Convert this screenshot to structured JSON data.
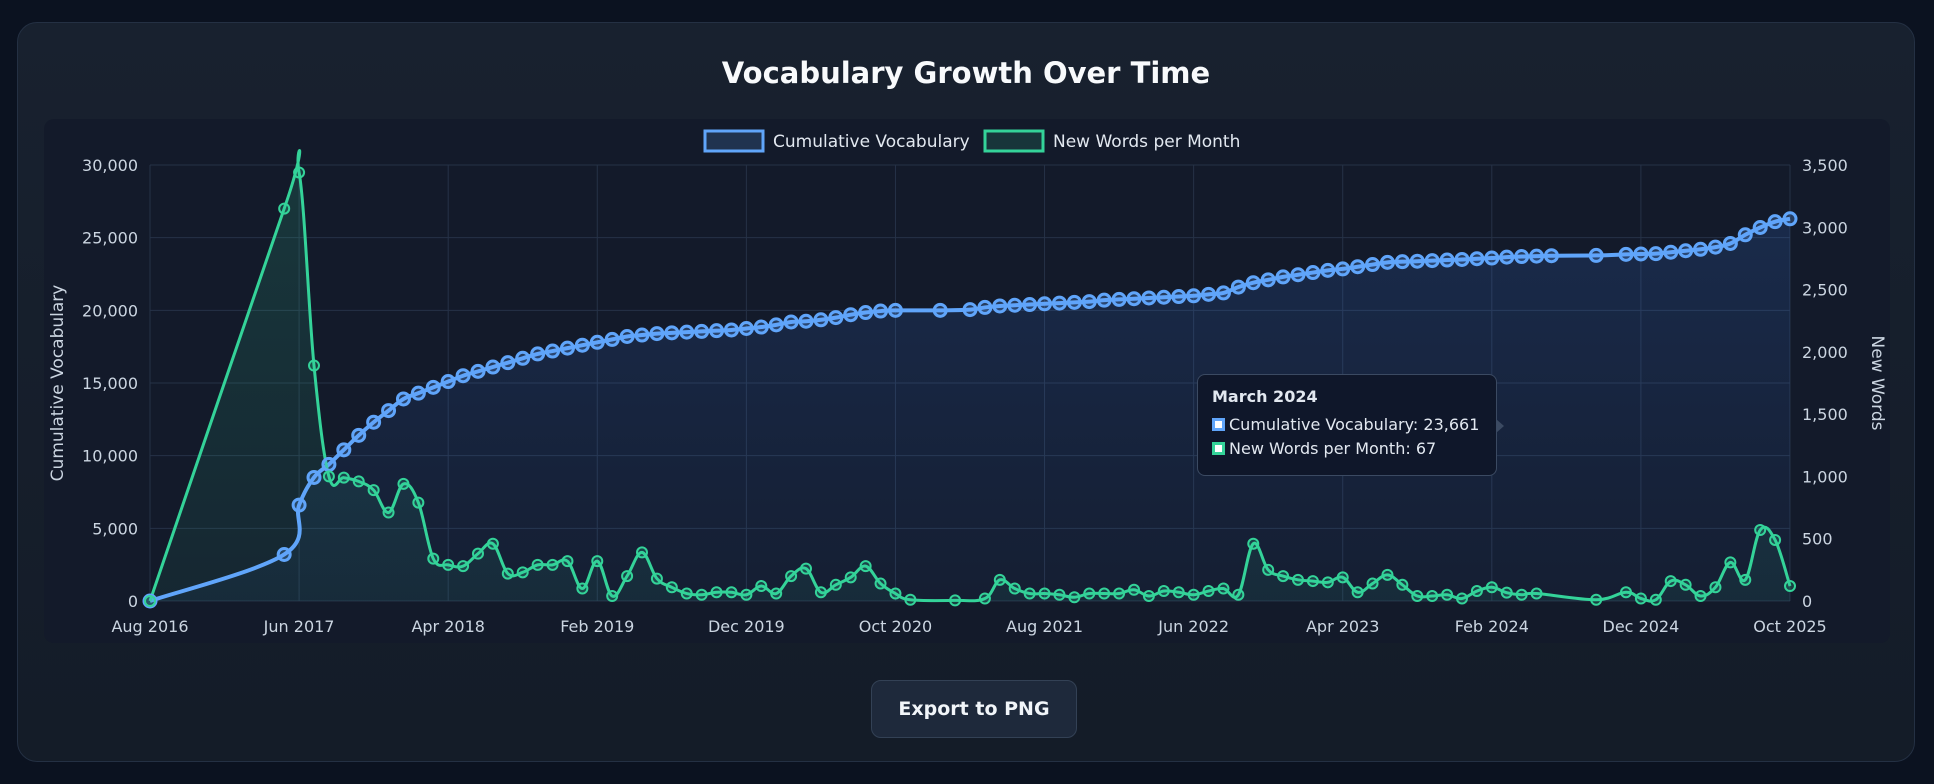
{
  "title": "Vocabulary Growth Over Time",
  "export_label": "Export to PNG",
  "tooltip": {
    "title": "March 2024",
    "rows": [
      {
        "label": "Cumulative Vocabulary: 23,661",
        "color": "#60a5fa"
      },
      {
        "label": "New Words per Month: 67",
        "color": "#34d399"
      }
    ]
  },
  "chart_data": {
    "type": "line",
    "title": "Vocabulary Growth Over Time",
    "legend_position": "top-center",
    "grid": true,
    "x_tick_labels": [
      "Aug 2016",
      "Jun 2017",
      "Apr 2018",
      "Feb 2019",
      "Dec 2019",
      "Oct 2020",
      "Aug 2021",
      "Jun 2022",
      "Apr 2023",
      "Feb 2024",
      "Dec 2024",
      "Oct 2025"
    ],
    "x_range": [
      "2016-08",
      "2025-10"
    ],
    "y_left": {
      "label": "Cumulative Vocabulary",
      "range": [
        0,
        30000
      ],
      "ticks": [
        "0",
        "5,000",
        "10,000",
        "15,000",
        "20,000",
        "25,000",
        "30,000"
      ]
    },
    "y_right": {
      "label": "New Words",
      "range": [
        0,
        3500
      ],
      "ticks": [
        "0",
        "500",
        "1,000",
        "1,500",
        "2,000",
        "2,500",
        "3,000",
        "3,500"
      ]
    },
    "series": [
      {
        "name": "Cumulative Vocabulary",
        "axis": "left",
        "color": "#60a5fa",
        "points": [
          [
            "2016-08",
            0
          ],
          [
            "2017-05",
            3200
          ],
          [
            "2017-06",
            6600
          ],
          [
            "2017-07",
            8500
          ],
          [
            "2017-08",
            9400
          ],
          [
            "2017-09",
            10400
          ],
          [
            "2017-10",
            11400
          ],
          [
            "2017-11",
            12300
          ],
          [
            "2017-12",
            13100
          ],
          [
            "2018-01",
            13900
          ],
          [
            "2018-02",
            14300
          ],
          [
            "2018-03",
            14700
          ],
          [
            "2018-04",
            15100
          ],
          [
            "2018-05",
            15500
          ],
          [
            "2018-06",
            15800
          ],
          [
            "2018-07",
            16100
          ],
          [
            "2018-08",
            16400
          ],
          [
            "2018-09",
            16700
          ],
          [
            "2018-10",
            17000
          ],
          [
            "2018-11",
            17200
          ],
          [
            "2018-12",
            17400
          ],
          [
            "2019-01",
            17600
          ],
          [
            "2019-02",
            17800
          ],
          [
            "2019-03",
            18000
          ],
          [
            "2019-04",
            18200
          ],
          [
            "2019-05",
            18300
          ],
          [
            "2019-06",
            18400
          ],
          [
            "2019-07",
            18450
          ],
          [
            "2019-08",
            18500
          ],
          [
            "2019-09",
            18550
          ],
          [
            "2019-10",
            18600
          ],
          [
            "2019-11",
            18650
          ],
          [
            "2019-12",
            18750
          ],
          [
            "2020-01",
            18850
          ],
          [
            "2020-02",
            19000
          ],
          [
            "2020-03",
            19200
          ],
          [
            "2020-04",
            19250
          ],
          [
            "2020-05",
            19350
          ],
          [
            "2020-06",
            19500
          ],
          [
            "2020-07",
            19700
          ],
          [
            "2020-08",
            19850
          ],
          [
            "2020-09",
            19950
          ],
          [
            "2020-10",
            20000
          ],
          [
            "2021-01",
            20000
          ],
          [
            "2021-03",
            20050
          ],
          [
            "2021-04",
            20200
          ],
          [
            "2021-05",
            20300
          ],
          [
            "2021-06",
            20350
          ],
          [
            "2021-07",
            20400
          ],
          [
            "2021-08",
            20450
          ],
          [
            "2021-09",
            20500
          ],
          [
            "2021-10",
            20550
          ],
          [
            "2021-11",
            20600
          ],
          [
            "2021-12",
            20700
          ],
          [
            "2022-01",
            20750
          ],
          [
            "2022-02",
            20800
          ],
          [
            "2022-03",
            20850
          ],
          [
            "2022-04",
            20900
          ],
          [
            "2022-05",
            20950
          ],
          [
            "2022-06",
            21000
          ],
          [
            "2022-07",
            21100
          ],
          [
            "2022-08",
            21200
          ],
          [
            "2022-09",
            21600
          ],
          [
            "2022-10",
            21900
          ],
          [
            "2022-11",
            22100
          ],
          [
            "2022-12",
            22300
          ],
          [
            "2023-01",
            22450
          ],
          [
            "2023-02",
            22600
          ],
          [
            "2023-03",
            22750
          ],
          [
            "2023-04",
            22850
          ],
          [
            "2023-05",
            23000
          ],
          [
            "2023-06",
            23150
          ],
          [
            "2023-07",
            23300
          ],
          [
            "2023-08",
            23350
          ],
          [
            "2023-09",
            23380
          ],
          [
            "2023-10",
            23420
          ],
          [
            "2023-11",
            23460
          ],
          [
            "2023-12",
            23500
          ],
          [
            "2024-01",
            23550
          ],
          [
            "2024-02",
            23600
          ],
          [
            "2024-03",
            23661
          ],
          [
            "2024-04",
            23700
          ],
          [
            "2024-05",
            23730
          ],
          [
            "2024-06",
            23760
          ],
          [
            "2024-09",
            23780
          ],
          [
            "2024-11",
            23850
          ],
          [
            "2024-12",
            23880
          ],
          [
            "2025-01",
            23900
          ],
          [
            "2025-02",
            24000
          ],
          [
            "2025-03",
            24100
          ],
          [
            "2025-04",
            24200
          ],
          [
            "2025-05",
            24350
          ],
          [
            "2025-06",
            24600
          ],
          [
            "2025-07",
            25200
          ],
          [
            "2025-08",
            25700
          ],
          [
            "2025-09",
            26100
          ],
          [
            "2025-10",
            26300
          ]
        ]
      },
      {
        "name": "New Words per Month",
        "axis": "right",
        "color": "#34d399",
        "points": [
          [
            "2016-08",
            0
          ],
          [
            "2017-05",
            3150
          ],
          [
            "2017-06",
            3440
          ],
          [
            "2017-07",
            1890
          ],
          [
            "2017-08",
            1000
          ],
          [
            "2017-09",
            990
          ],
          [
            "2017-10",
            960
          ],
          [
            "2017-11",
            890
          ],
          [
            "2017-12",
            710
          ],
          [
            "2018-01",
            940
          ],
          [
            "2018-02",
            790
          ],
          [
            "2018-03",
            340
          ],
          [
            "2018-04",
            290
          ],
          [
            "2018-05",
            280
          ],
          [
            "2018-06",
            380
          ],
          [
            "2018-07",
            460
          ],
          [
            "2018-08",
            220
          ],
          [
            "2018-09",
            230
          ],
          [
            "2018-10",
            290
          ],
          [
            "2018-11",
            290
          ],
          [
            "2018-12",
            320
          ],
          [
            "2019-01",
            100
          ],
          [
            "2019-02",
            320
          ],
          [
            "2019-03",
            40
          ],
          [
            "2019-04",
            200
          ],
          [
            "2019-05",
            390
          ],
          [
            "2019-06",
            180
          ],
          [
            "2019-07",
            110
          ],
          [
            "2019-08",
            60
          ],
          [
            "2019-09",
            50
          ],
          [
            "2019-10",
            70
          ],
          [
            "2019-11",
            70
          ],
          [
            "2019-12",
            50
          ],
          [
            "2020-01",
            120
          ],
          [
            "2020-02",
            60
          ],
          [
            "2020-03",
            200
          ],
          [
            "2020-04",
            260
          ],
          [
            "2020-05",
            70
          ],
          [
            "2020-06",
            130
          ],
          [
            "2020-07",
            190
          ],
          [
            "2020-08",
            280
          ],
          [
            "2020-09",
            140
          ],
          [
            "2020-10",
            60
          ],
          [
            "2020-11",
            10
          ],
          [
            "2021-02",
            5
          ],
          [
            "2021-04",
            20
          ],
          [
            "2021-05",
            170
          ],
          [
            "2021-06",
            100
          ],
          [
            "2021-07",
            60
          ],
          [
            "2021-08",
            60
          ],
          [
            "2021-09",
            50
          ],
          [
            "2021-10",
            30
          ],
          [
            "2021-11",
            60
          ],
          [
            "2021-12",
            60
          ],
          [
            "2022-01",
            60
          ],
          [
            "2022-02",
            90
          ],
          [
            "2022-03",
            40
          ],
          [
            "2022-04",
            80
          ],
          [
            "2022-05",
            70
          ],
          [
            "2022-06",
            50
          ],
          [
            "2022-07",
            80
          ],
          [
            "2022-08",
            100
          ],
          [
            "2022-09",
            50
          ],
          [
            "2022-10",
            460
          ],
          [
            "2022-11",
            250
          ],
          [
            "2022-12",
            200
          ],
          [
            "2023-01",
            170
          ],
          [
            "2023-02",
            160
          ],
          [
            "2023-03",
            150
          ],
          [
            "2023-04",
            190
          ],
          [
            "2023-05",
            70
          ],
          [
            "2023-06",
            140
          ],
          [
            "2023-07",
            210
          ],
          [
            "2023-08",
            130
          ],
          [
            "2023-09",
            40
          ],
          [
            "2023-10",
            40
          ],
          [
            "2023-11",
            50
          ],
          [
            "2023-12",
            20
          ],
          [
            "2024-01",
            80
          ],
          [
            "2024-02",
            110
          ],
          [
            "2024-03",
            67
          ],
          [
            "2024-04",
            50
          ],
          [
            "2024-05",
            60
          ],
          [
            "2024-09",
            10
          ],
          [
            "2024-11",
            70
          ],
          [
            "2024-12",
            20
          ],
          [
            "2025-01",
            10
          ],
          [
            "2025-02",
            160
          ],
          [
            "2025-03",
            130
          ],
          [
            "2025-04",
            40
          ],
          [
            "2025-05",
            110
          ],
          [
            "2025-06",
            310
          ],
          [
            "2025-07",
            170
          ],
          [
            "2025-08",
            570
          ],
          [
            "2025-09",
            490
          ],
          [
            "2025-10",
            120
          ]
        ]
      }
    ]
  }
}
